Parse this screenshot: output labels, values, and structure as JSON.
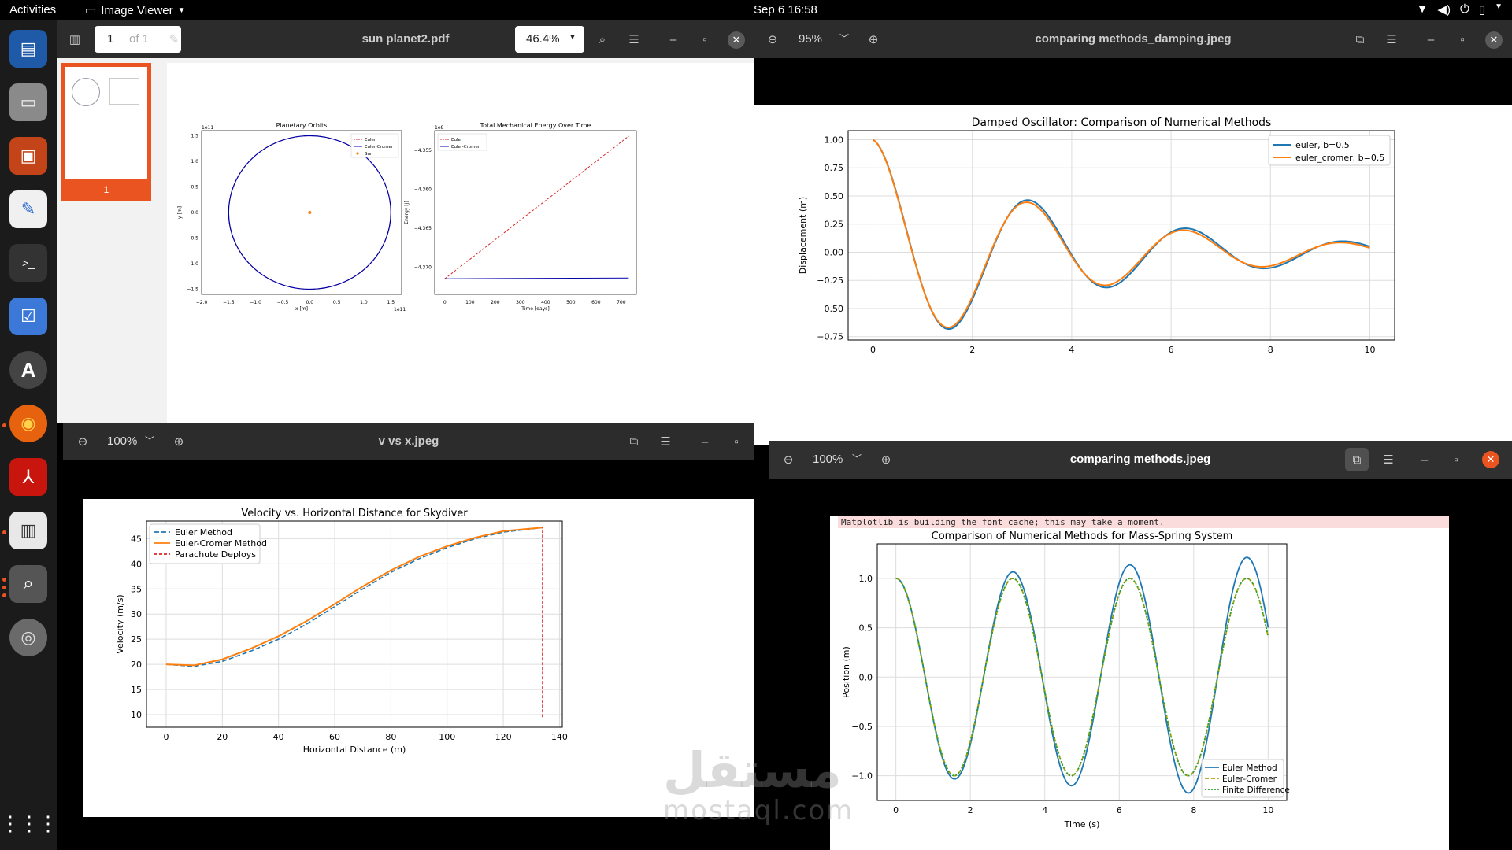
{
  "topbar": {
    "activities": "Activities",
    "app_name": "Image Viewer",
    "clock": "Sep 6  16:58"
  },
  "pdf_window": {
    "title": "sun planet2.pdf",
    "page_input": "1",
    "page_of": "of 1",
    "zoom": "46.4%",
    "thumb_label": "1",
    "fig1": {
      "title": "Planetary Orbits",
      "xlabel": "x [m]",
      "ylabel": "y [m]",
      "scale_x": "1e11",
      "scale_y": "1e11",
      "xticks": [
        "−2.0",
        "−1.5",
        "−1.0",
        "−0.5",
        "0.0",
        "0.5",
        "1.0",
        "1.5"
      ],
      "yticks": [
        "1.5",
        "1.0",
        "0.5",
        "0.0",
        "−0.5",
        "−1.0",
        "−1.5"
      ],
      "legend": [
        "Euler",
        "Euler-Cromer",
        "Sun"
      ]
    },
    "fig2": {
      "title": "Total Mechanical Energy Over Time",
      "xlabel": "Time [days]",
      "ylabel": "Energy [J]",
      "scale_y": "1e8",
      "xticks": [
        "0",
        "100",
        "200",
        "300",
        "400",
        "500",
        "600",
        "700"
      ],
      "yticks": [
        "−4.355",
        "−4.360",
        "−4.365",
        "−4.370"
      ],
      "legend": [
        "Euler",
        "Euler-Cromer"
      ]
    }
  },
  "damping_window": {
    "title": "comparing methods_damping.jpeg",
    "zoom": "95%",
    "chart": {
      "title": "Damped Oscillator: Comparison of Numerical Methods",
      "ylabel": "Displacement (m)",
      "xticks": [
        "0",
        "2",
        "4",
        "6",
        "8",
        "10"
      ],
      "yticks": [
        "1.00",
        "0.75",
        "0.50",
        "0.25",
        "0.00",
        "−0.25",
        "−0.50",
        "−0.75"
      ],
      "legend": [
        "euler, b=0.5",
        "euler_cromer, b=0.5"
      ]
    }
  },
  "vx_window": {
    "title": "v vs x.jpeg",
    "zoom": "100%",
    "chart": {
      "title": "Velocity vs. Horizontal Distance for Skydiver",
      "xlabel": "Horizontal Distance (m)",
      "ylabel": "Velocity (m/s)",
      "xticks": [
        "0",
        "20",
        "40",
        "60",
        "80",
        "100",
        "120",
        "140"
      ],
      "yticks": [
        "45",
        "40",
        "35",
        "30",
        "25",
        "20",
        "15",
        "10"
      ],
      "legend": [
        "Euler Method",
        "Euler-Cromer Method",
        "Parachute Deploys"
      ]
    }
  },
  "mass_window": {
    "title": "comparing methods.jpeg",
    "zoom": "100%",
    "chart": {
      "banner": "Matplotlib is building the font cache; this may take a moment.",
      "title": "Comparison of Numerical Methods for Mass-Spring System",
      "xlabel": "Time (s)",
      "ylabel": "Position (m)",
      "xticks": [
        "0",
        "2",
        "4",
        "6",
        "8",
        "10"
      ],
      "yticks": [
        "1.0",
        "0.5",
        "0.0",
        "−0.5",
        "−1.0"
      ],
      "legend": [
        "Euler Method",
        "Euler-Cromer",
        "Finite Difference"
      ]
    }
  },
  "watermark": {
    "arabic": "مستقل",
    "latin": "mostaql.com"
  },
  "colors": {
    "euler_blue": "#1f77b4",
    "cromer_orange": "#ff7f0e",
    "green": "#2ca02c",
    "red": "#d62728",
    "navy": "#0000aa",
    "ubuntu_orange": "#e95420"
  },
  "chart_data": [
    {
      "type": "line",
      "title": "Planetary Orbits",
      "xlabel": "x [m]",
      "ylabel": "y [m]",
      "xlim": [
        -2.0,
        1.7
      ],
      "ylim": [
        -1.6,
        1.6
      ],
      "series": [
        {
          "name": "Euler",
          "shape": "circle",
          "radius": 1.5
        },
        {
          "name": "Euler-Cromer",
          "shape": "circle",
          "radius": 1.5
        },
        {
          "name": "Sun",
          "x": [
            0
          ],
          "y": [
            0
          ]
        }
      ]
    },
    {
      "type": "line",
      "title": "Total Mechanical Energy Over Time",
      "xlabel": "Time [days]",
      "ylabel": "Energy [J]",
      "xlim": [
        -40,
        760
      ],
      "ylim": [
        -4.3735,
        -4.3525
      ],
      "series": [
        {
          "name": "Euler",
          "x": [
            0,
            730
          ],
          "y": [
            -4.3715,
            -4.3532
          ]
        },
        {
          "name": "Euler-Cromer",
          "x": [
            0,
            730
          ],
          "y": [
            -4.3715,
            -4.3714
          ]
        }
      ]
    },
    {
      "type": "line",
      "title": "Damped Oscillator: Comparison of Numerical Methods",
      "ylabel": "Displacement (m)",
      "xlim": [
        -0.5,
        10.5
      ],
      "ylim": [
        -0.78,
        1.08
      ],
      "series": [
        {
          "name": "euler, b=0.5",
          "model": {
            "A": 1.0,
            "gamma": 0.245,
            "omega": 1.98
          }
        },
        {
          "name": "euler_cromer, b=0.5",
          "model": {
            "A": 1.0,
            "gamma": 0.26,
            "omega": 1.99
          }
        }
      ]
    },
    {
      "type": "line",
      "title": "Velocity vs. Horizontal Distance for Skydiver",
      "xlabel": "Horizontal Distance (m)",
      "ylabel": "Velocity (m/s)",
      "xlim": [
        -7,
        141
      ],
      "ylim": [
        7.5,
        48.5
      ],
      "series": [
        {
          "name": "Euler Method",
          "x": [
            0,
            10,
            20,
            30,
            40,
            50,
            60,
            70,
            80,
            90,
            100,
            110,
            120,
            134
          ],
          "y": [
            20,
            19.6,
            20.6,
            22.6,
            25.0,
            28.0,
            31.5,
            35.0,
            38.3,
            41.0,
            43.2,
            45.0,
            46.3,
            47.2
          ]
        },
        {
          "name": "Euler-Cromer Method",
          "x": [
            0,
            10,
            20,
            30,
            40,
            50,
            60,
            70,
            80,
            90,
            100,
            110,
            120,
            134
          ],
          "y": [
            20,
            19.8,
            21.0,
            23.1,
            25.6,
            28.6,
            32.0,
            35.5,
            38.7,
            41.4,
            43.5,
            45.2,
            46.5,
            47.2
          ]
        },
        {
          "name": "Parachute Deploys",
          "x": [
            134,
            134
          ],
          "y": [
            9.5,
            47.2
          ]
        }
      ]
    },
    {
      "type": "line",
      "title": "Comparison of Numerical Methods for Mass-Spring System",
      "xlabel": "Time (s)",
      "ylabel": "Position (m)",
      "xlim": [
        -0.5,
        10.5
      ],
      "ylim": [
        -1.25,
        1.35
      ],
      "series": [
        {
          "name": "Euler Method",
          "model": {
            "A": 1.0,
            "growth": 0.0205,
            "omega": 2.0
          }
        },
        {
          "name": "Euler-Cromer",
          "model": {
            "A": 1.0,
            "growth": 0.0,
            "omega": 2.0
          }
        },
        {
          "name": "Finite Difference",
          "model": {
            "A": 1.0,
            "growth": 0.0,
            "omega": 2.0
          }
        }
      ]
    }
  ]
}
